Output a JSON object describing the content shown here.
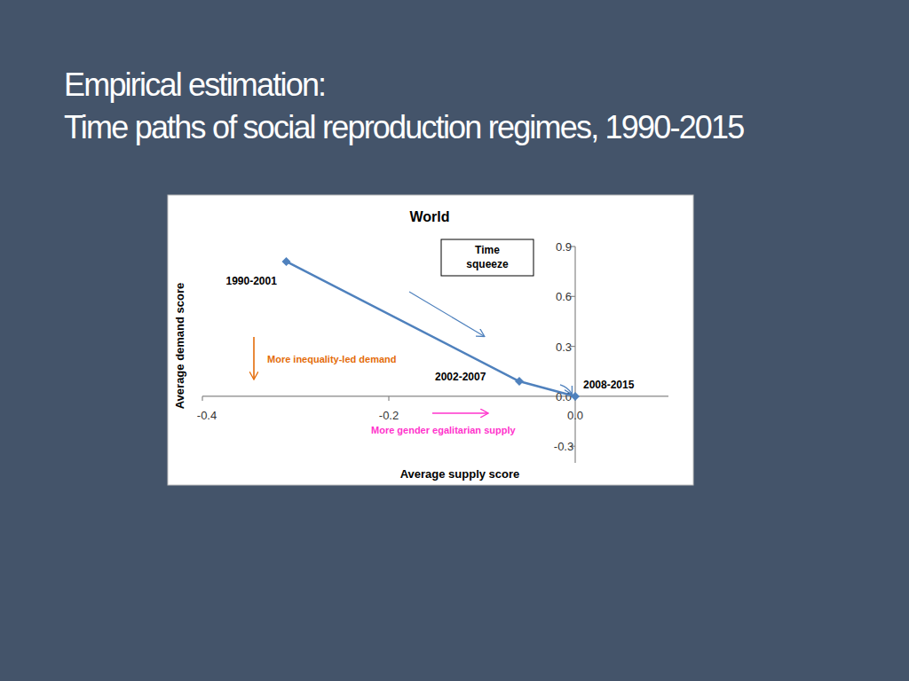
{
  "slide_title": [
    "Empirical estimation:",
    "Time paths of social reproduction regimes, 1990-2015"
  ],
  "chart_data": {
    "type": "line",
    "title": "World",
    "x_label": "Average supply score",
    "y_label": "Average demand score",
    "x": [
      -0.31,
      -0.06,
      0.0
    ],
    "values": [
      0.81,
      0.09,
      0.0
    ],
    "labels": [
      "1990-2001",
      "2002-2007",
      "2008-2015"
    ],
    "color": "#4f81bd",
    "marker": "diamond",
    "grid": false,
    "xlim": [
      -0.4,
      0.1
    ],
    "xticks": [
      {
        "value": -0.4,
        "label": "-0.4"
      },
      {
        "value": -0.2,
        "label": "-0.2"
      },
      {
        "value": 0,
        "label": "0.0"
      }
    ],
    "ylim": [
      -0.4,
      0.9
    ],
    "yticks": [
      {
        "value": 0.9,
        "label": "0.9"
      },
      {
        "value": 0.6,
        "label": "0.6"
      },
      {
        "value": 0.3,
        "label": "0.3"
      },
      {
        "value": 0,
        "label": "0.0"
      },
      {
        "value": -0.3,
        "label": "-0.3"
      }
    ],
    "annotations": [
      {
        "text": "Time squeeze",
        "color": "#000000"
      },
      {
        "text": "More inequality-led demand",
        "color": "#e46c0a"
      },
      {
        "text": "More gender egalitarian supply",
        "color": "#ff33cc"
      }
    ]
  }
}
